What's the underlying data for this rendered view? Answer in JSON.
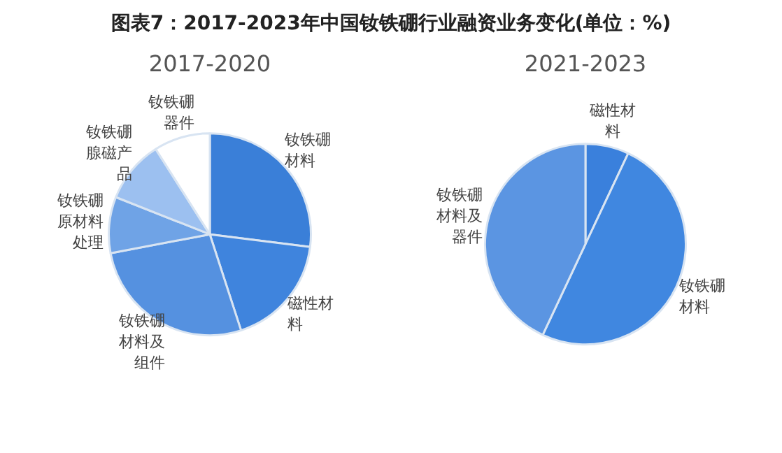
{
  "chart_data": [
    {
      "type": "pie",
      "title": "2017-2020",
      "annotations": [
        "图表7：2017-2023年中国钕铁硼行业融资业务变化(单位：%)"
      ],
      "categories": [
        "钕铁硼材料",
        "磁性材料",
        "钕铁硼材料及组件",
        "钕铁硼原材料处理",
        "钕铁硼腺磁产品",
        "钕铁硼器件"
      ],
      "values": [
        27,
        18,
        27,
        9,
        10,
        9
      ],
      "colors": [
        "#3a7fd8",
        "#3f84dd",
        "#5591e0",
        "#6fa3e6",
        "#9cc0f0",
        "#ffffff"
      ]
    },
    {
      "type": "pie",
      "title": "2021-2023",
      "categories": [
        "磁性材料",
        "钕铁硼材料",
        "钕铁硼材料及器件"
      ],
      "values": [
        7,
        50,
        43
      ],
      "colors": [
        "#3a80dc",
        "#4087e0",
        "#5b95e2"
      ]
    }
  ]
}
